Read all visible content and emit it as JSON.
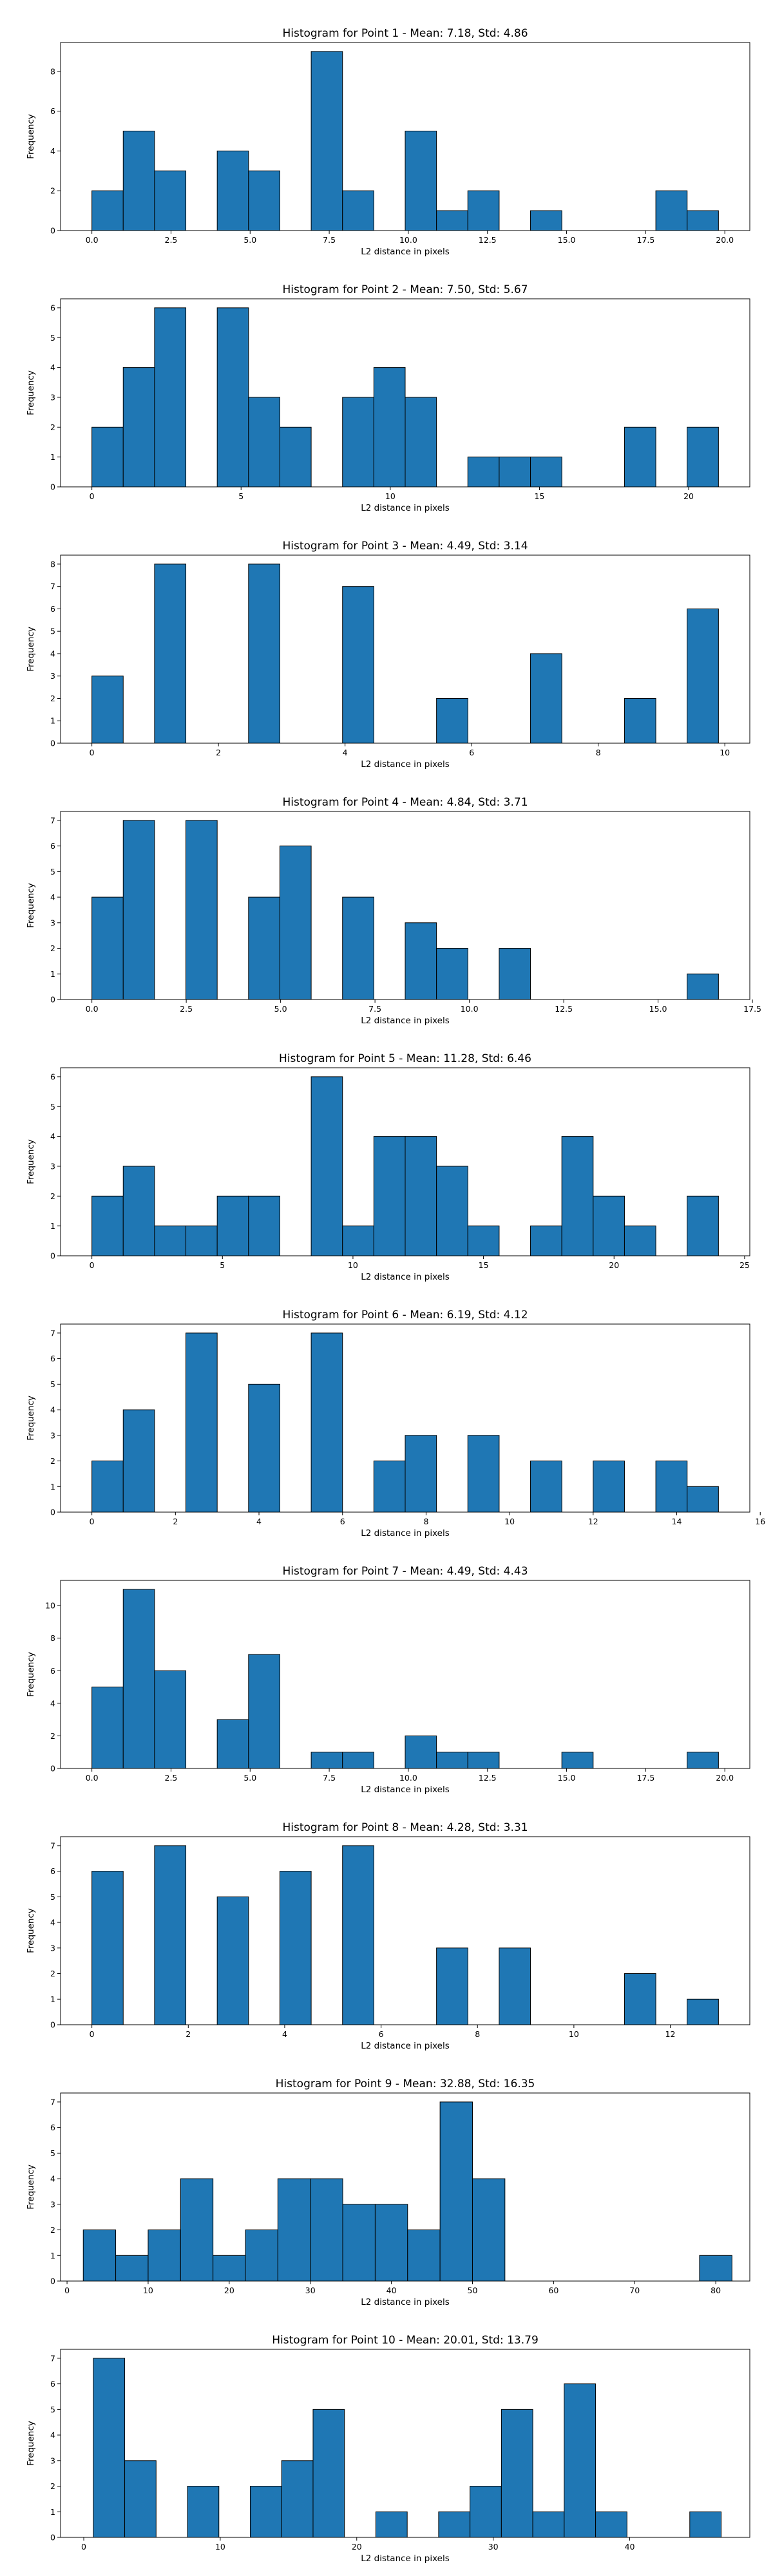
{
  "chart_data": [
    {
      "type": "bar",
      "title": "Histogram for Point 1 - Mean: 7.18, Std: 4.86",
      "xlabel": "L2 distance in pixels",
      "ylabel": "Frequency",
      "xlim": [
        -0.99,
        20.79
      ],
      "ylim": [
        0,
        9.45
      ],
      "xticks": [
        0,
        2.5,
        5,
        7.5,
        10,
        12.5,
        15,
        17.5,
        20
      ],
      "xtick_labels": [
        "0.0",
        "2.5",
        "5.0",
        "7.5",
        "10.0",
        "12.5",
        "15.0",
        "17.5",
        "20.0"
      ],
      "yticks": [
        0,
        2,
        4,
        6,
        8
      ],
      "bin_edges": [
        0.0,
        0.99,
        1.98,
        2.97,
        3.96,
        4.95,
        5.94,
        6.93,
        7.92,
        8.91,
        9.9,
        10.89,
        11.88,
        12.87,
        13.86,
        14.85,
        15.84,
        16.83,
        17.82,
        18.81,
        19.8
      ],
      "counts": [
        2,
        5,
        3,
        0,
        4,
        3,
        0,
        9,
        2,
        0,
        5,
        1,
        2,
        0,
        1,
        0,
        0,
        0,
        2,
        1
      ],
      "grid": false,
      "bar_color": "#1f77b4",
      "edge_color": "#000000"
    },
    {
      "type": "bar",
      "title": "Histogram for Point 2 - Mean: 7.50, Std: 5.67",
      "xlabel": "L2 distance in pixels",
      "ylabel": "Frequency",
      "xlim": [
        -1.05,
        22.05
      ],
      "ylim": [
        0,
        6.3
      ],
      "xticks": [
        0,
        5,
        10,
        15,
        20
      ],
      "xtick_labels": [
        "0",
        "5",
        "10",
        "15",
        "20"
      ],
      "yticks": [
        0,
        1,
        2,
        3,
        4,
        5,
        6
      ],
      "bin_edges": [
        0.0,
        1.05,
        2.1,
        3.15,
        4.2,
        5.25,
        6.3,
        7.35,
        8.4,
        9.45,
        10.5,
        11.55,
        12.6,
        13.65,
        14.7,
        15.75,
        16.8,
        17.85,
        18.9,
        19.95,
        21.0
      ],
      "counts": [
        2,
        4,
        6,
        0,
        6,
        3,
        2,
        0,
        3,
        4,
        3,
        0,
        1,
        1,
        1,
        0,
        0,
        2,
        0,
        2
      ],
      "grid": false,
      "bar_color": "#1f77b4",
      "edge_color": "#000000"
    },
    {
      "type": "bar",
      "title": "Histogram for Point 3 - Mean: 4.49, Std: 3.14",
      "xlabel": "L2 distance in pixels",
      "ylabel": "Frequency",
      "xlim": [
        -0.495,
        10.395
      ],
      "ylim": [
        0,
        8.4
      ],
      "xticks": [
        0,
        2,
        4,
        6,
        8,
        10
      ],
      "xtick_labels": [
        "0",
        "2",
        "4",
        "6",
        "8",
        "10"
      ],
      "yticks": [
        0,
        1,
        2,
        3,
        4,
        5,
        6,
        7,
        8
      ],
      "bin_edges": [
        0.0,
        0.495,
        0.99,
        1.485,
        1.98,
        2.475,
        2.97,
        3.465,
        3.96,
        4.455,
        4.95,
        5.445,
        5.94,
        6.435,
        6.93,
        7.425,
        7.92,
        8.415,
        8.91,
        9.405,
        9.9
      ],
      "counts": [
        3,
        0,
        8,
        0,
        0,
        8,
        0,
        0,
        7,
        0,
        0,
        2,
        0,
        0,
        4,
        0,
        0,
        2,
        0,
        6
      ],
      "grid": false,
      "bar_color": "#1f77b4",
      "edge_color": "#000000"
    },
    {
      "type": "bar",
      "title": "Histogram for Point 4 - Mean: 4.84, Std: 3.71",
      "xlabel": "L2 distance in pixels",
      "ylabel": "Frequency",
      "xlim": [
        -0.83,
        17.43
      ],
      "ylim": [
        0,
        7.35
      ],
      "xticks": [
        0,
        2.5,
        5,
        7.5,
        10,
        12.5,
        15,
        17.5
      ],
      "xtick_labels": [
        "0.0",
        "2.5",
        "5.0",
        "7.5",
        "10.0",
        "12.5",
        "15.0",
        "17.5"
      ],
      "yticks": [
        0,
        1,
        2,
        3,
        4,
        5,
        6,
        7
      ],
      "bin_edges": [
        0.0,
        0.83,
        1.66,
        2.49,
        3.32,
        4.15,
        4.98,
        5.81,
        6.64,
        7.47,
        8.3,
        9.13,
        9.96,
        10.79,
        11.62,
        12.45,
        13.28,
        14.11,
        14.94,
        15.77,
        16.6
      ],
      "counts": [
        4,
        7,
        0,
        7,
        0,
        4,
        6,
        0,
        4,
        0,
        3,
        2,
        0,
        2,
        0,
        0,
        0,
        0,
        0,
        1
      ],
      "grid": false,
      "bar_color": "#1f77b4",
      "edge_color": "#000000"
    },
    {
      "type": "bar",
      "title": "Histogram for Point 5 - Mean: 11.28, Std: 6.46",
      "xlabel": "L2 distance in pixels",
      "ylabel": "Frequency",
      "xlim": [
        -1.2,
        25.2
      ],
      "ylim": [
        0,
        6.3
      ],
      "xticks": [
        0,
        5,
        10,
        15,
        20,
        25
      ],
      "xtick_labels": [
        "0",
        "5",
        "10",
        "15",
        "20",
        "25"
      ],
      "yticks": [
        0,
        1,
        2,
        3,
        4,
        5,
        6
      ],
      "bin_edges": [
        0.0,
        1.2,
        2.4,
        3.6,
        4.8,
        6.0,
        7.2,
        8.4,
        9.6,
        10.8,
        12.0,
        13.2,
        14.4,
        15.6,
        16.8,
        18.0,
        19.2,
        20.4,
        21.6,
        22.8,
        24.0
      ],
      "counts": [
        2,
        3,
        1,
        1,
        2,
        2,
        0,
        6,
        1,
        4,
        4,
        3,
        1,
        0,
        1,
        4,
        2,
        1,
        0,
        2
      ],
      "grid": false,
      "bar_color": "#1f77b4",
      "edge_color": "#000000"
    },
    {
      "type": "bar",
      "title": "Histogram for Point 6 - Mean: 6.19, Std: 4.12",
      "xlabel": "L2 distance in pixels",
      "ylabel": "Frequency",
      "xlim": [
        -0.75,
        15.75
      ],
      "ylim": [
        0,
        7.35
      ],
      "xticks": [
        0,
        2,
        4,
        6,
        8,
        10,
        12,
        14,
        16
      ],
      "xtick_labels": [
        "0",
        "2",
        "4",
        "6",
        "8",
        "10",
        "12",
        "14",
        "16"
      ],
      "yticks": [
        0,
        1,
        2,
        3,
        4,
        5,
        6,
        7
      ],
      "bin_edges": [
        0.0,
        0.75,
        1.5,
        2.25,
        3.0,
        3.75,
        4.5,
        5.25,
        6.0,
        6.75,
        7.5,
        8.25,
        9.0,
        9.75,
        10.5,
        11.25,
        12.0,
        12.75,
        13.5,
        14.25,
        15.0
      ],
      "counts": [
        2,
        4,
        0,
        7,
        0,
        5,
        0,
        7,
        0,
        2,
        3,
        0,
        3,
        0,
        2,
        0,
        2,
        0,
        2,
        1
      ],
      "grid": false,
      "bar_color": "#1f77b4",
      "edge_color": "#000000"
    },
    {
      "type": "bar",
      "title": "Histogram for Point 7 - Mean: 4.49, Std: 4.43",
      "xlabel": "L2 distance in pixels",
      "ylabel": "Frequency",
      "xlim": [
        -0.99,
        20.79
      ],
      "ylim": [
        0,
        11.55
      ],
      "xticks": [
        0,
        2.5,
        5,
        7.5,
        10,
        12.5,
        15,
        17.5,
        20
      ],
      "xtick_labels": [
        "0.0",
        "2.5",
        "5.0",
        "7.5",
        "10.0",
        "12.5",
        "15.0",
        "17.5",
        "20.0"
      ],
      "yticks": [
        0,
        2,
        4,
        6,
        8,
        10
      ],
      "bin_edges": [
        0.0,
        0.99,
        1.98,
        2.97,
        3.96,
        4.95,
        5.94,
        6.93,
        7.92,
        8.91,
        9.9,
        10.89,
        11.88,
        12.87,
        13.86,
        14.85,
        15.84,
        16.83,
        17.82,
        18.81,
        19.8
      ],
      "counts": [
        5,
        11,
        6,
        0,
        3,
        7,
        0,
        1,
        1,
        0,
        2,
        1,
        1,
        0,
        0,
        1,
        0,
        0,
        0,
        1
      ],
      "grid": false,
      "bar_color": "#1f77b4",
      "edge_color": "#000000"
    },
    {
      "type": "bar",
      "title": "Histogram for Point 8 - Mean: 4.28, Std: 3.31",
      "xlabel": "L2 distance in pixels",
      "ylabel": "Frequency",
      "xlim": [
        -0.65,
        13.65
      ],
      "ylim": [
        0,
        7.35
      ],
      "xticks": [
        0,
        2,
        4,
        6,
        8,
        10,
        12
      ],
      "xtick_labels": [
        "0",
        "2",
        "4",
        "6",
        "8",
        "10",
        "12"
      ],
      "yticks": [
        0,
        1,
        2,
        3,
        4,
        5,
        6,
        7
      ],
      "bin_edges": [
        0.0,
        0.65,
        1.3,
        1.95,
        2.6,
        3.25,
        3.9,
        4.55,
        5.2,
        5.85,
        6.5,
        7.15,
        7.8,
        8.45,
        9.1,
        9.75,
        10.4,
        11.05,
        11.7,
        12.35,
        13.0
      ],
      "counts": [
        6,
        0,
        7,
        0,
        5,
        0,
        6,
        0,
        7,
        0,
        0,
        3,
        0,
        3,
        0,
        0,
        0,
        2,
        0,
        1
      ],
      "grid": false,
      "bar_color": "#1f77b4",
      "edge_color": "#000000"
    },
    {
      "type": "bar",
      "title": "Histogram for Point 9 - Mean: 32.88, Std: 16.35",
      "xlabel": "L2 distance in pixels",
      "ylabel": "Frequency",
      "xlim": [
        -0.8,
        84.2
      ],
      "ylim": [
        0,
        7.35
      ],
      "xticks": [
        0,
        10,
        20,
        30,
        40,
        50,
        60,
        70,
        80
      ],
      "xtick_labels": [
        "0",
        "10",
        "20",
        "30",
        "40",
        "50",
        "60",
        "70",
        "80"
      ],
      "yticks": [
        0,
        1,
        2,
        3,
        4,
        5,
        6,
        7
      ],
      "bin_edges": [
        2.0,
        6.0,
        10.0,
        14.0,
        18.0,
        22.0,
        26.0,
        30.0,
        34.0,
        38.0,
        42.0,
        46.0,
        50.0,
        54.0,
        58.0,
        62.0,
        66.0,
        70.0,
        74.0,
        78.0,
        82.0
      ],
      "counts": [
        2,
        1,
        2,
        4,
        1,
        2,
        4,
        4,
        3,
        3,
        2,
        7,
        4,
        0,
        0,
        0,
        0,
        0,
        0,
        1
      ],
      "grid": false,
      "bar_color": "#1f77b4",
      "edge_color": "#000000"
    },
    {
      "type": "bar",
      "title": "Histogram for Point 10 - Mean: 20.01, Std: 13.79",
      "xlabel": "L2 distance in pixels",
      "ylabel": "Frequency",
      "xlim": [
        -1.7,
        48.8
      ],
      "ylim": [
        0,
        7.35
      ],
      "xticks": [
        0,
        10,
        20,
        30,
        40
      ],
      "xtick_labels": [
        "0",
        "10",
        "20",
        "30",
        "40"
      ],
      "yticks": [
        0,
        1,
        2,
        3,
        4,
        5,
        6,
        7
      ],
      "bin_edges": [
        0.7,
        3.0,
        5.3,
        7.6,
        9.9,
        12.2,
        14.5,
        16.8,
        19.1,
        21.4,
        23.7,
        26.0,
        28.3,
        30.6,
        32.9,
        35.2,
        37.5,
        39.8,
        42.1,
        44.4,
        46.7
      ],
      "counts": [
        7,
        3,
        0,
        2,
        0,
        2,
        3,
        5,
        0,
        1,
        0,
        1,
        2,
        5,
        1,
        6,
        1,
        0,
        0,
        1
      ],
      "grid": false,
      "bar_color": "#1f77b4",
      "edge_color": "#000000"
    }
  ]
}
